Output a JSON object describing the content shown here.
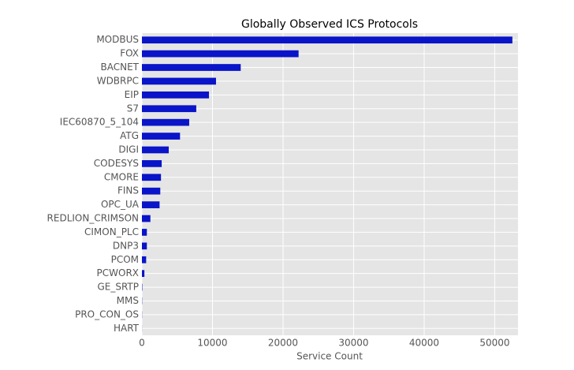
{
  "chart_data": {
    "type": "barh",
    "title": "Globally Observed ICS Protocols",
    "xlabel": "Service Count",
    "categories": [
      "MODBUS",
      "FOX",
      "BACNET",
      "WDBRPC",
      "EIP",
      "S7",
      "IEC60870_5_104",
      "ATG",
      "DIGI",
      "CODESYS",
      "CMORE",
      "FINS",
      "OPC_UA",
      "REDLION_CRIMSON",
      "CIMON_PLC",
      "DNP3",
      "PCOM",
      "PCWORX",
      "GE_SRTP",
      "MMS",
      "PRO_CON_OS",
      "HART"
    ],
    "values": [
      52500,
      22200,
      14000,
      10500,
      9500,
      7700,
      6700,
      5400,
      3800,
      2800,
      2700,
      2600,
      2500,
      1200,
      700,
      700,
      600,
      350,
      50,
      30,
      20,
      10
    ],
    "color": "#0a14c8",
    "xlim": [
      0,
      53300
    ],
    "xticks": [
      0,
      10000,
      20000,
      30000,
      40000,
      50000
    ],
    "grid": true
  }
}
